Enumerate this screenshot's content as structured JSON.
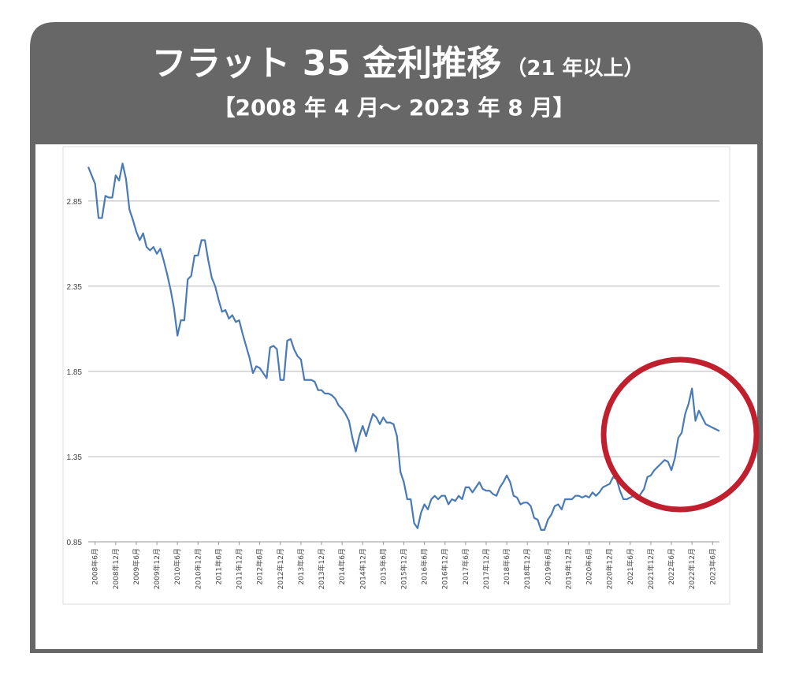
{
  "chart_data": {
    "type": "line",
    "title": "フラット 35 金利推移",
    "title_note": "（21 年以上）",
    "subtitle": "【2008 年 4 月～ 2023 年 8 月】",
    "color": "#4a7ab5",
    "grid": true,
    "ylim": [
      0.85,
      3.15
    ],
    "yticks": [
      0.85,
      1.35,
      1.85,
      2.35,
      2.85
    ],
    "categories": [
      null,
      null,
      "2008年6月",
      null,
      null,
      null,
      null,
      null,
      "2008年12月",
      null,
      null,
      null,
      null,
      null,
      "2009年6月",
      null,
      null,
      null,
      null,
      null,
      "2009年12月",
      null,
      null,
      null,
      null,
      null,
      "2010年6月",
      null,
      null,
      null,
      null,
      null,
      "2010年12月",
      null,
      null,
      null,
      null,
      null,
      "2011年6月",
      null,
      null,
      null,
      null,
      null,
      "2011年12月",
      null,
      null,
      null,
      null,
      null,
      "2012年6月",
      null,
      null,
      null,
      null,
      null,
      "2012年12月",
      null,
      null,
      null,
      null,
      null,
      "2013年6月",
      null,
      null,
      null,
      null,
      null,
      "2013年12月",
      null,
      null,
      null,
      null,
      null,
      "2014年6月",
      null,
      null,
      null,
      null,
      null,
      "2014年12月",
      null,
      null,
      null,
      null,
      null,
      "2015年6月",
      null,
      null,
      null,
      null,
      null,
      "2015年12月",
      null,
      null,
      null,
      null,
      null,
      "2016年6月",
      null,
      null,
      null,
      null,
      null,
      "2016年12月",
      null,
      null,
      null,
      null,
      null,
      "2017年6月",
      null,
      null,
      null,
      null,
      null,
      "2017年12月",
      null,
      null,
      null,
      null,
      null,
      "2018年6月",
      null,
      null,
      null,
      null,
      null,
      "2018年12月",
      null,
      null,
      null,
      null,
      null,
      "2019年6月",
      null,
      null,
      null,
      null,
      null,
      "2019年12月",
      null,
      null,
      null,
      null,
      null,
      "2020年6月",
      null,
      null,
      null,
      null,
      null,
      "2020年12月",
      null,
      null,
      null,
      null,
      null,
      "2021年6月",
      null,
      null,
      null,
      null,
      null,
      "2021年12月",
      null,
      null,
      null,
      null,
      null,
      "2022年6月",
      null,
      null,
      null,
      null,
      null,
      "2022年12月",
      null,
      null,
      null,
      null,
      null,
      "2023年6月",
      null,
      null
    ],
    "values": [
      3.05,
      3.0,
      2.95,
      2.75,
      2.75,
      2.88,
      2.87,
      2.87,
      3.0,
      2.97,
      3.07,
      2.98,
      2.8,
      2.74,
      2.67,
      2.62,
      2.66,
      2.58,
      2.56,
      2.58,
      2.54,
      2.57,
      2.5,
      2.42,
      2.33,
      2.22,
      2.06,
      2.15,
      2.15,
      2.39,
      2.41,
      2.53,
      2.53,
      2.62,
      2.62,
      2.5,
      2.4,
      2.35,
      2.27,
      2.2,
      2.21,
      2.16,
      2.18,
      2.14,
      2.15,
      2.07,
      2.0,
      1.93,
      1.84,
      1.88,
      1.87,
      1.84,
      1.81,
      1.99,
      2.0,
      1.98,
      1.8,
      1.8,
      2.03,
      2.04,
      1.98,
      1.94,
      1.92,
      1.8,
      1.8,
      1.8,
      1.79,
      1.74,
      1.74,
      1.72,
      1.72,
      1.71,
      1.69,
      1.65,
      1.63,
      1.6,
      1.56,
      1.46,
      1.38,
      1.47,
      1.53,
      1.47,
      1.54,
      1.6,
      1.58,
      1.54,
      1.58,
      1.55,
      1.55,
      1.54,
      1.47,
      1.26,
      1.2,
      1.1,
      1.1,
      0.96,
      0.93,
      1.02,
      1.07,
      1.04,
      1.1,
      1.12,
      1.1,
      1.12,
      1.12,
      1.07,
      1.1,
      1.09,
      1.12,
      1.1,
      1.17,
      1.17,
      1.14,
      1.17,
      1.2,
      1.16,
      1.15,
      1.15,
      1.13,
      1.12,
      1.17,
      1.2,
      1.24,
      1.2,
      1.12,
      1.11,
      1.07,
      1.08,
      1.08,
      1.06,
      0.99,
      0.98,
      0.92,
      0.92,
      0.98,
      1.01,
      1.06,
      1.07,
      1.04,
      1.1,
      1.1,
      1.1,
      1.12,
      1.12,
      1.11,
      1.12,
      1.11,
      1.14,
      1.12,
      1.14,
      1.17,
      1.18,
      1.19,
      1.23,
      1.22,
      1.15,
      1.1,
      1.1,
      1.11,
      1.12,
      1.1,
      1.13,
      1.16,
      1.23,
      1.24,
      1.27,
      1.29,
      1.31,
      1.33,
      1.32,
      1.27,
      1.34,
      1.46,
      1.49,
      1.6,
      1.66,
      1.75,
      1.56,
      1.62,
      1.58,
      1.54,
      1.53,
      1.52,
      1.51,
      1.5
    ]
  }
}
